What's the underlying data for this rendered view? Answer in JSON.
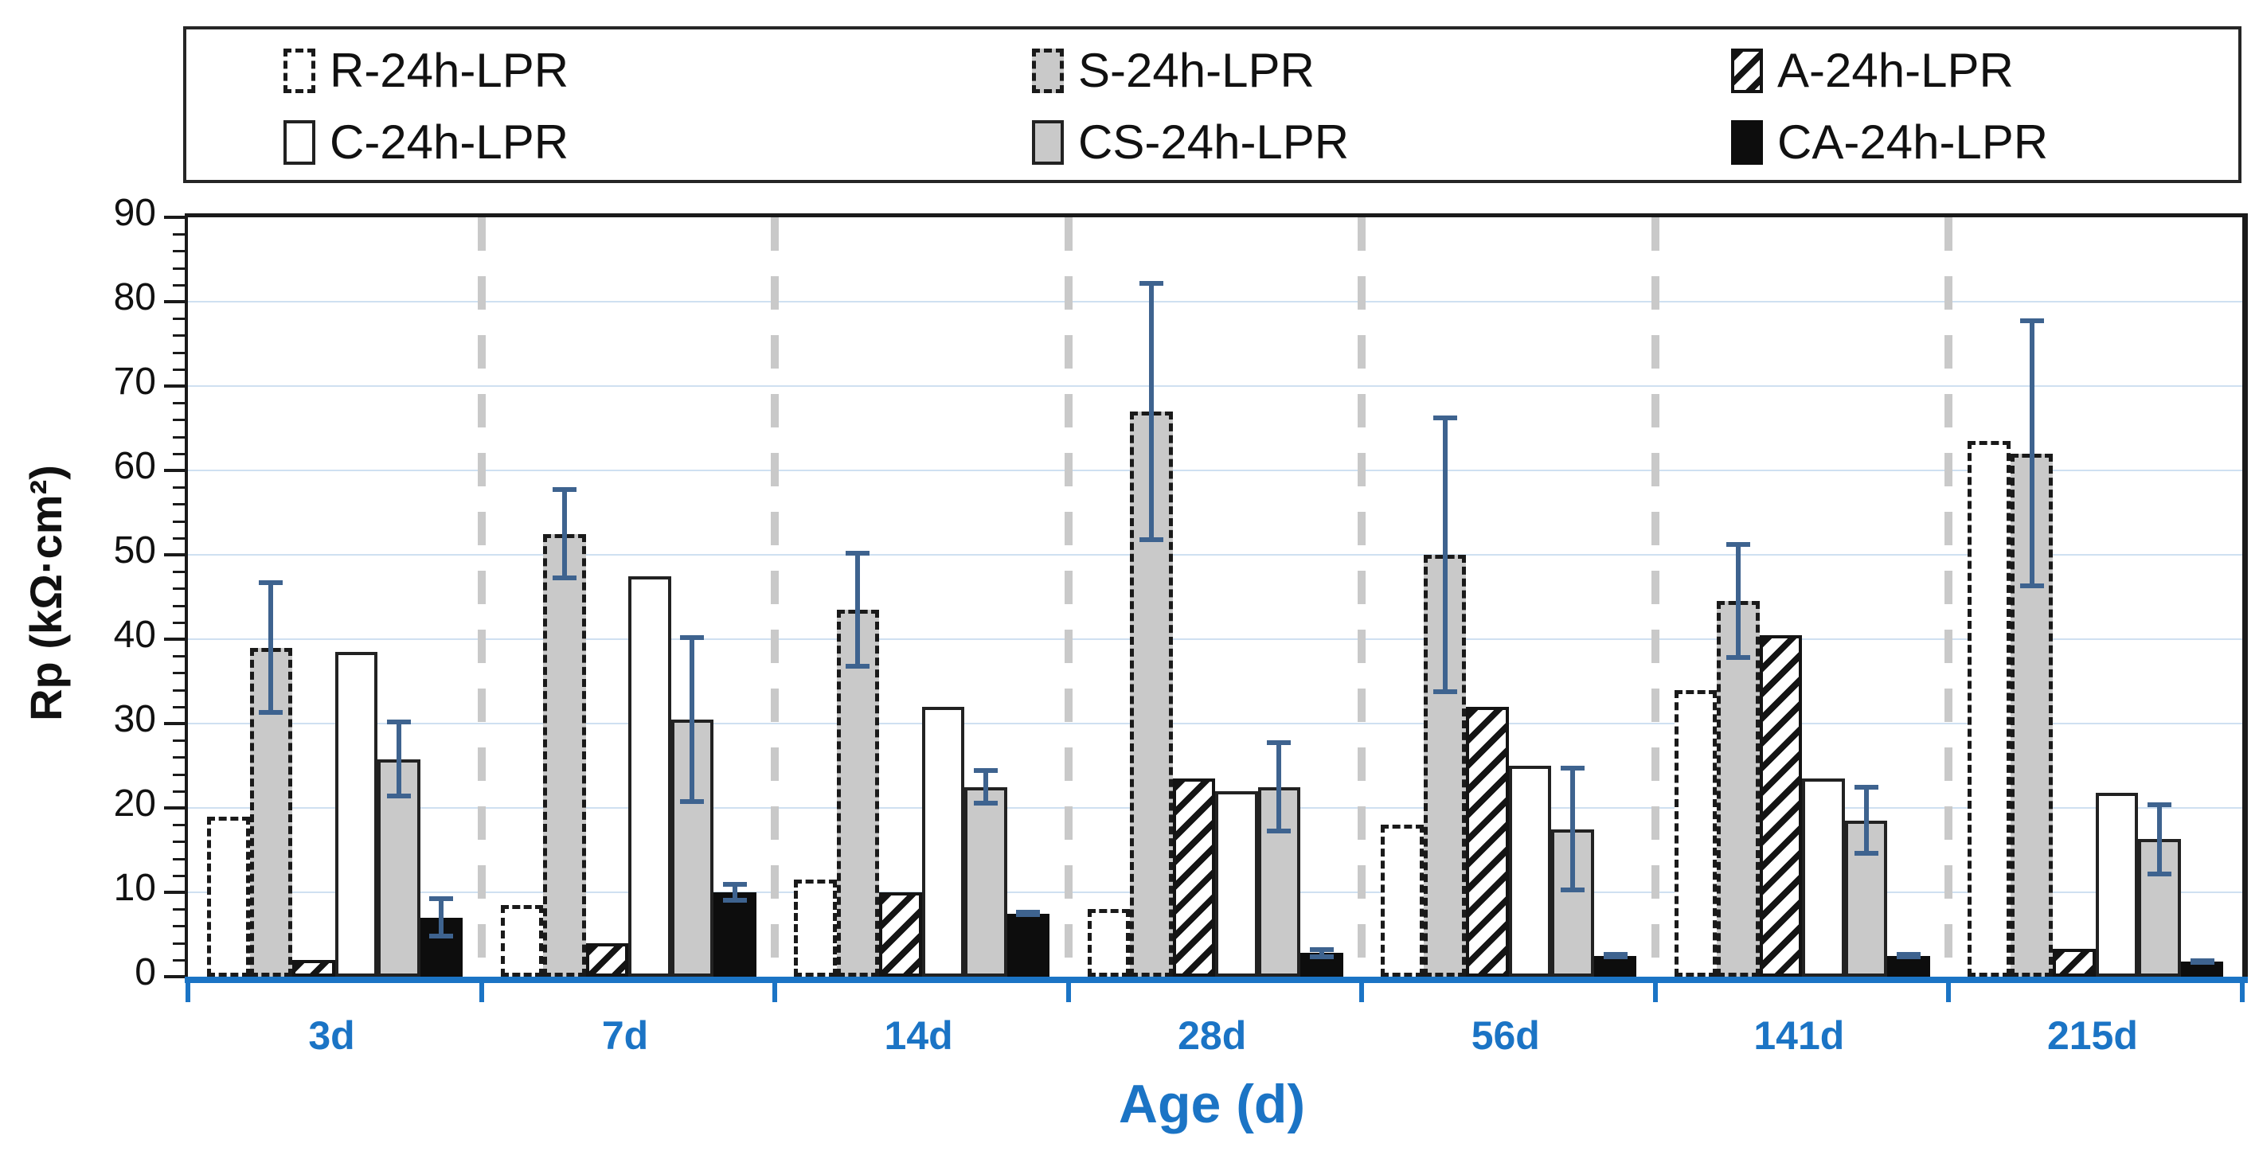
{
  "legend": {
    "items": [
      {
        "id": "R",
        "label": "R-24h-LPR",
        "style": "white-dashed"
      },
      {
        "id": "S",
        "label": "S-24h-LPR",
        "style": "gray-dashed"
      },
      {
        "id": "A",
        "label": "A-24h-LPR",
        "style": "hatched"
      },
      {
        "id": "C",
        "label": "C-24h-LPR",
        "style": "white-solid"
      },
      {
        "id": "CS",
        "label": "CS-24h-LPR",
        "style": "gray-solid"
      },
      {
        "id": "CA",
        "label": "CA-24h-LPR",
        "style": "black-solid"
      }
    ]
  },
  "y_axis": {
    "title": "Rp (kΩ·cm²)",
    "min": 0,
    "max": 90,
    "major_step": 10,
    "minor_step": 2
  },
  "x_axis": {
    "title": "Age (d)",
    "categories": [
      "3d",
      "7d",
      "14d",
      "28d",
      "56d",
      "141d",
      "215d"
    ]
  },
  "chart_data": {
    "type": "bar",
    "title": "",
    "xlabel": "Age (d)",
    "ylabel": "Rp (kΩ·cm²)",
    "ylim": [
      0,
      90
    ],
    "grid": "horizontal light-blue lines every 10; dashed gray vertical separators between categories",
    "legend_position": "top",
    "categories": [
      "3d",
      "7d",
      "14d",
      "28d",
      "56d",
      "141d",
      "215d"
    ],
    "series": [
      {
        "name": "R-24h-LPR",
        "style": "white-dashed",
        "values": [
          19,
          8.5,
          11.5,
          8,
          18,
          34,
          63.5
        ]
      },
      {
        "name": "S-24h-LPR",
        "style": "gray-dashed",
        "values": [
          39,
          52.5,
          43.5,
          67,
          50,
          44.5,
          62
        ],
        "errors": [
          8,
          5.5,
          7,
          15.5,
          16.5,
          7,
          16
        ]
      },
      {
        "name": "A-24h-LPR",
        "style": "hatched",
        "values": [
          2,
          4,
          10,
          23.5,
          32,
          40.5,
          3.3
        ]
      },
      {
        "name": "C-24h-LPR",
        "style": "white-solid",
        "values": [
          38.5,
          47.5,
          32,
          22,
          25,
          23.5,
          21.8
        ]
      },
      {
        "name": "CS-24h-LPR",
        "style": "gray-solid",
        "values": [
          25.8,
          30.5,
          22.5,
          22.5,
          17.5,
          18.5,
          16.3
        ],
        "errors": [
          4.7,
          10,
          2.2,
          5.5,
          7.5,
          4.2,
          4.4
        ]
      },
      {
        "name": "CA-24h-LPR",
        "style": "black-solid",
        "values": [
          7,
          10,
          7.5,
          2.8,
          2.5,
          2.5,
          1.8
        ],
        "errors": [
          2.5,
          1.2,
          0.4,
          0.7,
          0.4,
          0.4,
          0.4
        ]
      }
    ],
    "colors": {
      "bar_gray": "#C9C9C9",
      "bar_black": "#0D0D0D",
      "bar_border": "#1A1A1A",
      "error_bar": "#3E638F",
      "axis_blue": "#1B74C5",
      "grid_blue": "#CFE0F1",
      "separator_gray": "#C9C9C9"
    }
  }
}
